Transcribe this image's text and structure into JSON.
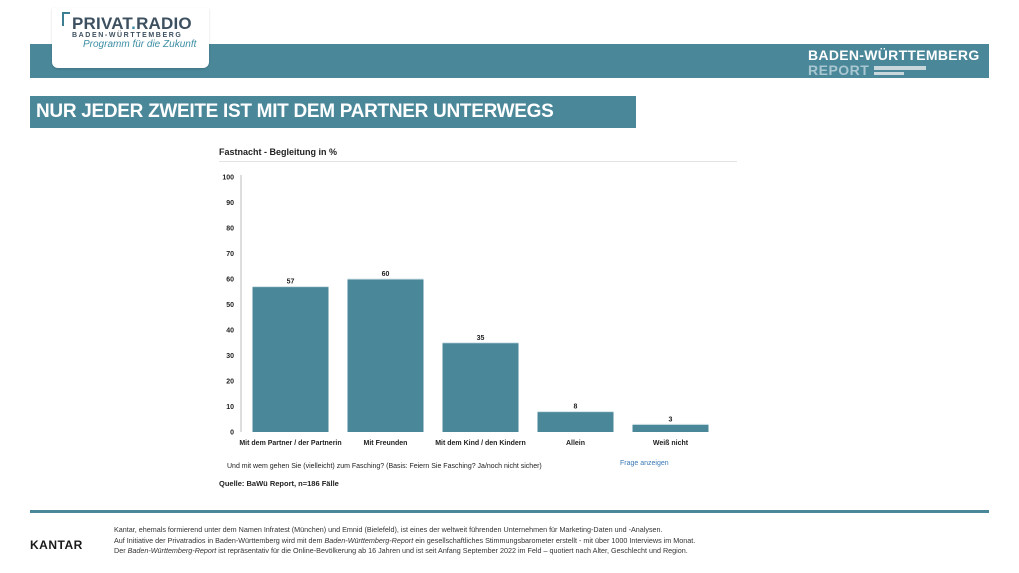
{
  "header": {
    "logo_title_a": "PRIVAT",
    "logo_title_dot": ".",
    "logo_title_b": "RADIO",
    "logo_subtitle": "BADEN-WÜRTTEMBERG",
    "logo_tagline": "Programm für die Zukunft",
    "report_line1": "BADEN-WÜRTTEMBERG",
    "report_line2": "REPORT",
    "brand_color": "#4a8799"
  },
  "headline": "NUR JEDER ZWEITE IST MIT DEM PARTNER UNTERWEGS",
  "chart_data": {
    "type": "bar",
    "title": "Fastnacht - Begleitung in %",
    "categories": [
      "Mit dem Partner / der Partnerin",
      "Mit Freunden",
      "Mit dem Kind / den Kindern",
      "Allein",
      "Weiß nicht"
    ],
    "values": [
      57,
      60,
      35,
      8,
      3
    ],
    "data_labels": [
      "57",
      "60",
      "35",
      "8",
      "3"
    ],
    "yticks": [
      "0",
      "10",
      "20",
      "30",
      "40",
      "50",
      "60",
      "70",
      "80",
      "90",
      "100"
    ],
    "ylim": [
      0,
      100
    ],
    "xlabel": "",
    "ylabel": "",
    "grid": false,
    "bar_color": "#4a8799"
  },
  "question": "Und mit wem gehen Sie (vielleicht) zum Fasching? (Basis: Feiern Sie Fasching? Ja/noch nicht sicher)",
  "frage_link": "Frage anzeigen",
  "source": "Quelle: BaWü Report, n=186 Fälle",
  "footer": {
    "logo": "KANTAR",
    "line1": "Kantar, ehemals formierend unter dem Namen Infratest (München) und Emnid (Bielefeld), ist eines der weltweit führenden Unternehmen für Marketing-Daten und -Analysen.",
    "line2_a": "Auf Initiative der Privatradios in Baden-Württemberg wird mit dem ",
    "line2_em": "Baden-Württemberg-Report",
    "line2_b": " ein gesellschaftliches Stimmungsbarometer erstellt - mit über 1000 Interviews im Monat.",
    "line3_a": "Der ",
    "line3_em": "Baden-Württemberg-Report",
    "line3_b": " ist repräsentativ für die Online-Bevölkerung ab 16 Jahren und ist seit Anfang September 2022 im Feld – quotiert nach Alter, Geschlecht und Region."
  }
}
